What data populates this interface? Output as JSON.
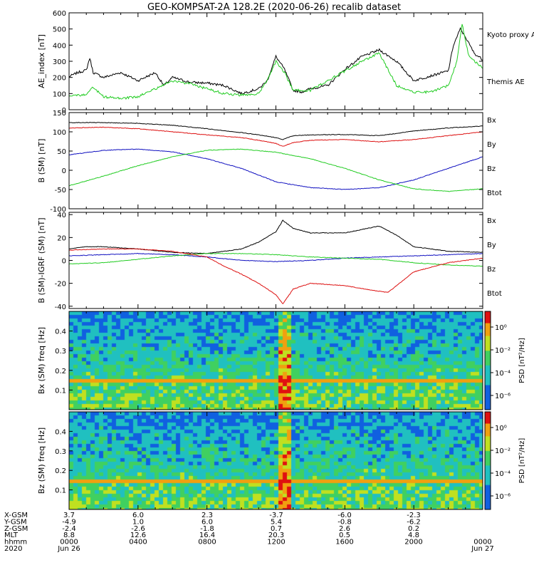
{
  "title": "GEO-KOMPSAT-2A 128.2E (2020-06-26) recalib dataset",
  "colors": {
    "black": "#000000",
    "green": "#22cc22",
    "blue": "#1010c0",
    "red": "#dd1010"
  },
  "chart_data": [
    {
      "type": "line",
      "ylabel": "AE_index [nT]",
      "ylim": [
        0,
        600
      ],
      "yticks": [
        "0",
        "100",
        "200",
        "300",
        "400",
        "500",
        "600"
      ],
      "legend": [
        {
          "label": "Kyoto proxy AE",
          "color": "green"
        },
        {
          "label": "Themis AE",
          "color": "black"
        }
      ],
      "series": [
        {
          "name": "Themis AE",
          "color": "black",
          "x": [
            0,
            0.5,
            1,
            1.2,
            1.4,
            2,
            3,
            4,
            5,
            5.5,
            6,
            7,
            8,
            9,
            10,
            11,
            11.5,
            12,
            12.5,
            13,
            13.5,
            14,
            15,
            16,
            17,
            18,
            19,
            20,
            21,
            22,
            22.3,
            22.7,
            23,
            23.5,
            24
          ],
          "y": [
            205,
            230,
            245,
            320,
            230,
            200,
            230,
            180,
            230,
            150,
            200,
            170,
            165,
            150,
            100,
            130,
            180,
            330,
            250,
            120,
            110,
            130,
            150,
            250,
            330,
            370,
            300,
            180,
            210,
            240,
            400,
            500,
            450,
            350,
            310
          ]
        },
        {
          "name": "Kyoto proxy AE",
          "color": "green",
          "x": [
            0,
            1,
            1.4,
            1.8,
            2,
            3,
            4,
            5,
            6,
            7,
            8,
            9,
            10,
            11,
            11.5,
            12,
            12.5,
            13,
            14,
            15,
            16,
            17,
            18,
            19,
            20,
            21,
            22,
            22.5,
            22.8,
            23.2,
            24
          ],
          "y": [
            90,
            90,
            140,
            100,
            80,
            70,
            80,
            130,
            180,
            160,
            130,
            100,
            90,
            100,
            180,
            300,
            230,
            120,
            120,
            180,
            240,
            300,
            350,
            150,
            110,
            110,
            150,
            300,
            530,
            330,
            260
          ]
        }
      ]
    },
    {
      "type": "line",
      "ylabel": "B (SM) [nT]",
      "ylim": [
        -100,
        150
      ],
      "yticks": [
        "-100",
        "-50",
        "0",
        "50",
        "100",
        "150"
      ],
      "legend": [
        {
          "label": "Bx",
          "color": "blue"
        },
        {
          "label": "By",
          "color": "green"
        },
        {
          "label": "Bz",
          "color": "red"
        },
        {
          "label": "Btot",
          "color": "black"
        }
      ],
      "series": [
        {
          "name": "Btot",
          "color": "black",
          "x": [
            0,
            2,
            4,
            6,
            8,
            10,
            11,
            12,
            12.4,
            13,
            14,
            16,
            18,
            20,
            22,
            24
          ],
          "y": [
            124,
            124,
            122,
            117,
            108,
            98,
            92,
            85,
            80,
            90,
            92,
            93,
            90,
            102,
            110,
            115
          ]
        },
        {
          "name": "Bx",
          "color": "blue",
          "x": [
            0,
            2,
            4,
            6,
            8,
            10,
            12,
            14,
            16,
            18,
            20,
            22,
            24
          ],
          "y": [
            40,
            52,
            55,
            48,
            30,
            5,
            -30,
            -45,
            -50,
            -45,
            -25,
            5,
            35
          ]
        },
        {
          "name": "By",
          "color": "green",
          "x": [
            0,
            2,
            4,
            6,
            8,
            10,
            12,
            14,
            16,
            18,
            20,
            22,
            24
          ],
          "y": [
            -40,
            -15,
            12,
            35,
            52,
            55,
            47,
            30,
            5,
            -25,
            -48,
            -55,
            -48
          ]
        },
        {
          "name": "Bz",
          "color": "red",
          "x": [
            0,
            2,
            4,
            6,
            8,
            10,
            11,
            12,
            12.4,
            13,
            14,
            16,
            18,
            20,
            22,
            24
          ],
          "y": [
            110,
            112,
            108,
            100,
            92,
            85,
            78,
            70,
            62,
            72,
            78,
            80,
            74,
            80,
            90,
            100
          ]
        }
      ]
    },
    {
      "type": "line",
      "ylabel": "B (SM)-IGRF (SM) [nT]",
      "ylim": [
        -42,
        42
      ],
      "yticks": [
        "-40",
        "-20",
        "0",
        "20",
        "40"
      ],
      "legend": [
        {
          "label": "Bx",
          "color": "blue"
        },
        {
          "label": "By",
          "color": "green"
        },
        {
          "label": "Bz",
          "color": "red"
        },
        {
          "label": "Btot",
          "color": "black"
        }
      ],
      "series": [
        {
          "name": "Btot",
          "color": "black",
          "x": [
            0,
            1,
            2,
            4,
            6,
            8,
            10,
            11,
            12,
            12.4,
            13,
            14,
            16,
            18,
            19,
            20,
            22,
            24
          ],
          "y": [
            10,
            12,
            12,
            10,
            7,
            6,
            10,
            16,
            25,
            35,
            28,
            24,
            24,
            30,
            22,
            12,
            8,
            7
          ]
        },
        {
          "name": "Bx",
          "color": "blue",
          "x": [
            0,
            2,
            4,
            6,
            8,
            10,
            12,
            14,
            16,
            18,
            20,
            22,
            24
          ],
          "y": [
            4,
            5,
            6,
            5,
            3,
            0,
            -1,
            0,
            2,
            3,
            4,
            5,
            6
          ]
        },
        {
          "name": "By",
          "color": "green",
          "x": [
            0,
            2,
            4,
            6,
            8,
            10,
            12,
            14,
            16,
            18,
            20,
            22,
            24
          ],
          "y": [
            -3,
            -2,
            1,
            4,
            6,
            6,
            5,
            3,
            2,
            1,
            -2,
            -4,
            -5
          ]
        },
        {
          "name": "Bz",
          "color": "red",
          "x": [
            0,
            2,
            4,
            6,
            8,
            9,
            10,
            11,
            12,
            12.4,
            13,
            14,
            16,
            18,
            18.5,
            19,
            20,
            22,
            24
          ],
          "y": [
            9,
            10,
            10,
            8,
            3,
            -5,
            -12,
            -20,
            -30,
            -38,
            -25,
            -20,
            -22,
            -27,
            -28,
            -22,
            -10,
            -2,
            2
          ]
        }
      ]
    },
    {
      "type": "heatmap",
      "ylabel": "Bx (SM) freq [Hz]",
      "ylim": [
        0,
        0.5
      ],
      "yticks": [
        "0.1",
        "0.2",
        "0.3",
        "0.4"
      ],
      "colorbar_label": "PSD [nT²/Hz]",
      "colorbar_ticks": [
        "10⁰",
        "10⁻²",
        "10⁻⁴",
        "10⁻⁶"
      ]
    },
    {
      "type": "heatmap",
      "ylabel": "Bz (SM) freq [Hz]",
      "ylim": [
        0,
        0.5
      ],
      "yticks": [
        "0.1",
        "0.2",
        "0.3",
        "0.4"
      ],
      "colorbar_label": "PSD [nT²/Hz]",
      "colorbar_ticks": [
        "10⁰",
        "10⁻²",
        "10⁻⁴",
        "10⁻⁶"
      ]
    }
  ],
  "ephemeris": {
    "rows": [
      {
        "label": "X-GSM",
        "values": [
          "3.7",
          "6.0",
          "2.3",
          "-3.7",
          "-6.0",
          "-2.3",
          ""
        ]
      },
      {
        "label": "Y-GSM",
        "values": [
          "-4.9",
          "1.0",
          "6.0",
          "5.4",
          "-0.8",
          "-6.2",
          ""
        ]
      },
      {
        "label": "Z-GSM",
        "values": [
          "-2.4",
          "-2.6",
          "-1.8",
          "0.7",
          "2.6",
          "0.2",
          ""
        ]
      },
      {
        "label": "MLT",
        "values": [
          "8.8",
          "12.6",
          "16.4",
          "20.3",
          "0.5",
          "4.8",
          ""
        ]
      },
      {
        "label": "hhmm",
        "values": [
          "0000",
          "0400",
          "0800",
          "1200",
          "1600",
          "2000",
          "0000"
        ]
      },
      {
        "label": "2020",
        "values": [
          "Jun 26",
          "",
          "",
          "",
          "",
          "",
          "Jun 27"
        ]
      }
    ]
  }
}
